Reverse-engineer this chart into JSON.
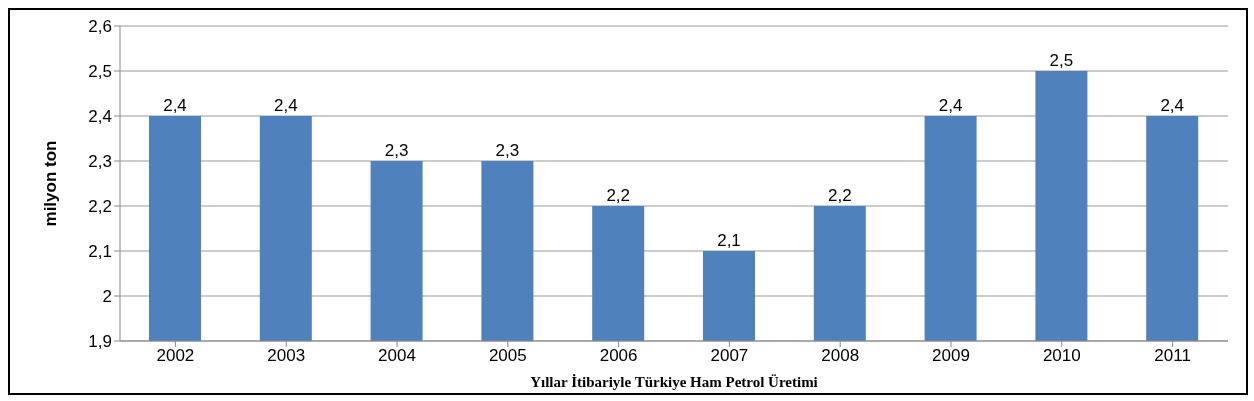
{
  "chart_data": {
    "type": "bar",
    "xlabel": "Yıllar İtibariyle Türkiye Ham Petrol Üretimi",
    "ylabel": "milyon ton",
    "categories": [
      "2002",
      "2003",
      "2004",
      "2005",
      "2006",
      "2007",
      "2008",
      "2009",
      "2010",
      "2011"
    ],
    "values": [
      2.4,
      2.4,
      2.3,
      2.3,
      2.2,
      2.1,
      2.2,
      2.4,
      2.5,
      2.4
    ],
    "value_labels": [
      "2,4",
      "2,4",
      "2,3",
      "2,3",
      "2,2",
      "2,1",
      "2,2",
      "2,4",
      "2,5",
      "2,4"
    ],
    "color": "#4f81bd",
    "ylim": [
      1.9,
      2.6
    ],
    "yticks": [
      {
        "value": 1.9,
        "label": "1,9"
      },
      2,
      {
        "value": 2.1,
        "label": "2,1"
      },
      {
        "value": 2.2,
        "label": "2,2"
      },
      {
        "value": 2.3,
        "label": "2,3"
      },
      {
        "value": 2.4,
        "label": "2,4"
      },
      {
        "value": 2.5,
        "label": "2,5"
      },
      {
        "value": 2.6,
        "label": "2,6"
      }
    ],
    "grid": "y",
    "legend": false
  }
}
